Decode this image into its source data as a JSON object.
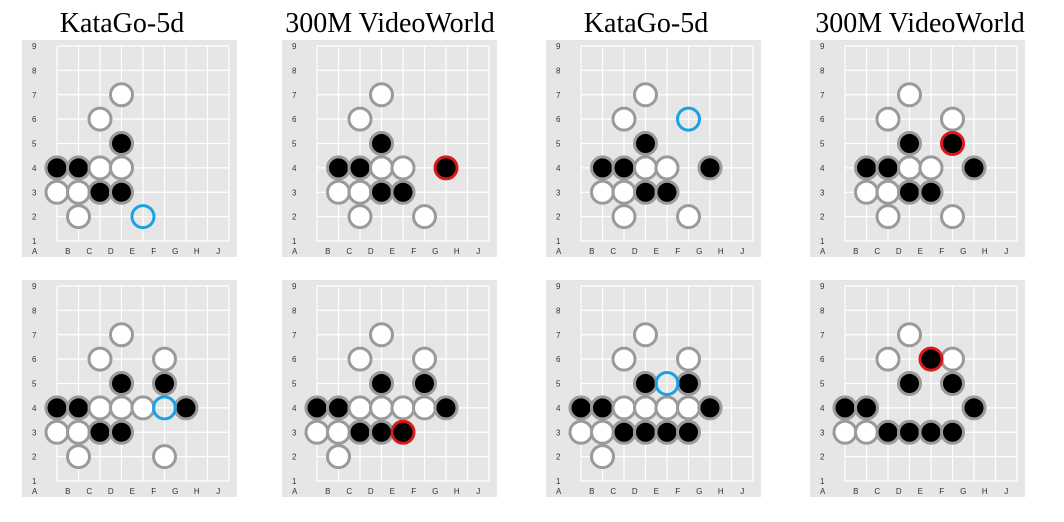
{
  "columns": [
    {
      "title": "KataGo-5d"
    },
    {
      "title": "300M VideoWorld"
    },
    {
      "title": "KataGo-5d"
    },
    {
      "title": "300M VideoWorld"
    }
  ],
  "axis": {
    "cols": [
      "A",
      "B",
      "C",
      "D",
      "E",
      "F",
      "G",
      "H",
      "J"
    ],
    "rows": [
      "1",
      "2",
      "3",
      "4",
      "5",
      "6",
      "7",
      "8",
      "9"
    ]
  },
  "colors": {
    "board": "#e6e6e6",
    "grid": "#ffffff",
    "black_stone": "#000000",
    "white_stone": "#ffffff",
    "stone_ring": "#9a9a9a",
    "katago_move": "#1ba1e2",
    "videoworld_move": "#d81a1a"
  },
  "boards": [
    {
      "name": "katago-board-1",
      "stones": [
        {
          "c": "D",
          "r": 7,
          "s": "w"
        },
        {
          "c": "C",
          "r": 6,
          "s": "w"
        },
        {
          "c": "D",
          "r": 5,
          "s": "b"
        },
        {
          "c": "A",
          "r": 4,
          "s": "b"
        },
        {
          "c": "B",
          "r": 4,
          "s": "b"
        },
        {
          "c": "C",
          "r": 4,
          "s": "w"
        },
        {
          "c": "D",
          "r": 4,
          "s": "w"
        },
        {
          "c": "A",
          "r": 3,
          "s": "w"
        },
        {
          "c": "B",
          "r": 3,
          "s": "w"
        },
        {
          "c": "C",
          "r": 3,
          "s": "b"
        },
        {
          "c": "D",
          "r": 3,
          "s": "b"
        },
        {
          "c": "B",
          "r": 2,
          "s": "w"
        }
      ],
      "move": {
        "c": "E",
        "r": 2,
        "s": "empty",
        "kind": "katago"
      }
    },
    {
      "name": "videoworld-board-1",
      "stones": [
        {
          "c": "D",
          "r": 7,
          "s": "w"
        },
        {
          "c": "C",
          "r": 6,
          "s": "w"
        },
        {
          "c": "D",
          "r": 5,
          "s": "b"
        },
        {
          "c": "B",
          "r": 4,
          "s": "b"
        },
        {
          "c": "C",
          "r": 4,
          "s": "b"
        },
        {
          "c": "D",
          "r": 4,
          "s": "w"
        },
        {
          "c": "E",
          "r": 4,
          "s": "w"
        },
        {
          "c": "B",
          "r": 3,
          "s": "w"
        },
        {
          "c": "C",
          "r": 3,
          "s": "w"
        },
        {
          "c": "D",
          "r": 3,
          "s": "b"
        },
        {
          "c": "E",
          "r": 3,
          "s": "b"
        },
        {
          "c": "C",
          "r": 2,
          "s": "w"
        },
        {
          "c": "F",
          "r": 2,
          "s": "w"
        }
      ],
      "move": {
        "c": "G",
        "r": 4,
        "s": "b",
        "kind": "videoworld"
      }
    },
    {
      "name": "katago-board-2",
      "stones": [
        {
          "c": "D",
          "r": 7,
          "s": "w"
        },
        {
          "c": "C",
          "r": 6,
          "s": "w"
        },
        {
          "c": "D",
          "r": 5,
          "s": "b"
        },
        {
          "c": "B",
          "r": 4,
          "s": "b"
        },
        {
          "c": "C",
          "r": 4,
          "s": "b"
        },
        {
          "c": "D",
          "r": 4,
          "s": "w"
        },
        {
          "c": "E",
          "r": 4,
          "s": "w"
        },
        {
          "c": "G",
          "r": 4,
          "s": "b"
        },
        {
          "c": "B",
          "r": 3,
          "s": "w"
        },
        {
          "c": "C",
          "r": 3,
          "s": "w"
        },
        {
          "c": "D",
          "r": 3,
          "s": "b"
        },
        {
          "c": "E",
          "r": 3,
          "s": "b"
        },
        {
          "c": "C",
          "r": 2,
          "s": "w"
        },
        {
          "c": "F",
          "r": 2,
          "s": "w"
        }
      ],
      "move": {
        "c": "F",
        "r": 6,
        "s": "empty",
        "kind": "katago"
      }
    },
    {
      "name": "videoworld-board-2",
      "stones": [
        {
          "c": "D",
          "r": 7,
          "s": "w"
        },
        {
          "c": "C",
          "r": 6,
          "s": "w"
        },
        {
          "c": "F",
          "r": 6,
          "s": "w"
        },
        {
          "c": "D",
          "r": 5,
          "s": "b"
        },
        {
          "c": "B",
          "r": 4,
          "s": "b"
        },
        {
          "c": "C",
          "r": 4,
          "s": "b"
        },
        {
          "c": "D",
          "r": 4,
          "s": "w"
        },
        {
          "c": "E",
          "r": 4,
          "s": "w"
        },
        {
          "c": "G",
          "r": 4,
          "s": "b"
        },
        {
          "c": "B",
          "r": 3,
          "s": "w"
        },
        {
          "c": "C",
          "r": 3,
          "s": "w"
        },
        {
          "c": "D",
          "r": 3,
          "s": "b"
        },
        {
          "c": "E",
          "r": 3,
          "s": "b"
        },
        {
          "c": "C",
          "r": 2,
          "s": "w"
        },
        {
          "c": "F",
          "r": 2,
          "s": "w"
        }
      ],
      "move": {
        "c": "F",
        "r": 5,
        "s": "b",
        "kind": "videoworld"
      }
    },
    {
      "name": "katago-board-3",
      "stones": [
        {
          "c": "D",
          "r": 7,
          "s": "w"
        },
        {
          "c": "C",
          "r": 6,
          "s": "w"
        },
        {
          "c": "F",
          "r": 6,
          "s": "w"
        },
        {
          "c": "D",
          "r": 5,
          "s": "b"
        },
        {
          "c": "F",
          "r": 5,
          "s": "b"
        },
        {
          "c": "A",
          "r": 4,
          "s": "b"
        },
        {
          "c": "B",
          "r": 4,
          "s": "b"
        },
        {
          "c": "C",
          "r": 4,
          "s": "w"
        },
        {
          "c": "D",
          "r": 4,
          "s": "w"
        },
        {
          "c": "E",
          "r": 4,
          "s": "w"
        },
        {
          "c": "G",
          "r": 4,
          "s": "b"
        },
        {
          "c": "A",
          "r": 3,
          "s": "w"
        },
        {
          "c": "B",
          "r": 3,
          "s": "w"
        },
        {
          "c": "C",
          "r": 3,
          "s": "b"
        },
        {
          "c": "D",
          "r": 3,
          "s": "b"
        },
        {
          "c": "B",
          "r": 2,
          "s": "w"
        },
        {
          "c": "F",
          "r": 2,
          "s": "w"
        }
      ],
      "move": {
        "c": "F",
        "r": 4,
        "s": "empty",
        "kind": "katago"
      }
    },
    {
      "name": "videoworld-board-3",
      "stones": [
        {
          "c": "D",
          "r": 7,
          "s": "w"
        },
        {
          "c": "C",
          "r": 6,
          "s": "w"
        },
        {
          "c": "F",
          "r": 6,
          "s": "w"
        },
        {
          "c": "D",
          "r": 5,
          "s": "b"
        },
        {
          "c": "F",
          "r": 5,
          "s": "b"
        },
        {
          "c": "A",
          "r": 4,
          "s": "b"
        },
        {
          "c": "B",
          "r": 4,
          "s": "b"
        },
        {
          "c": "C",
          "r": 4,
          "s": "w"
        },
        {
          "c": "D",
          "r": 4,
          "s": "w"
        },
        {
          "c": "E",
          "r": 4,
          "s": "w"
        },
        {
          "c": "F",
          "r": 4,
          "s": "w"
        },
        {
          "c": "G",
          "r": 4,
          "s": "b"
        },
        {
          "c": "A",
          "r": 3,
          "s": "w"
        },
        {
          "c": "B",
          "r": 3,
          "s": "w"
        },
        {
          "c": "C",
          "r": 3,
          "s": "b"
        },
        {
          "c": "D",
          "r": 3,
          "s": "b"
        },
        {
          "c": "B",
          "r": 2,
          "s": "w"
        }
      ],
      "move": {
        "c": "E",
        "r": 3,
        "s": "b",
        "kind": "videoworld"
      }
    },
    {
      "name": "katago-board-4",
      "stones": [
        {
          "c": "D",
          "r": 7,
          "s": "w"
        },
        {
          "c": "C",
          "r": 6,
          "s": "w"
        },
        {
          "c": "F",
          "r": 6,
          "s": "w"
        },
        {
          "c": "D",
          "r": 5,
          "s": "b"
        },
        {
          "c": "F",
          "r": 5,
          "s": "b"
        },
        {
          "c": "A",
          "r": 4,
          "s": "b"
        },
        {
          "c": "B",
          "r": 4,
          "s": "b"
        },
        {
          "c": "C",
          "r": 4,
          "s": "w"
        },
        {
          "c": "D",
          "r": 4,
          "s": "w"
        },
        {
          "c": "E",
          "r": 4,
          "s": "w"
        },
        {
          "c": "F",
          "r": 4,
          "s": "w"
        },
        {
          "c": "G",
          "r": 4,
          "s": "b"
        },
        {
          "c": "A",
          "r": 3,
          "s": "w"
        },
        {
          "c": "B",
          "r": 3,
          "s": "w"
        },
        {
          "c": "C",
          "r": 3,
          "s": "b"
        },
        {
          "c": "D",
          "r": 3,
          "s": "b"
        },
        {
          "c": "E",
          "r": 3,
          "s": "b"
        },
        {
          "c": "F",
          "r": 3,
          "s": "b"
        },
        {
          "c": "B",
          "r": 2,
          "s": "w"
        }
      ],
      "move": {
        "c": "E",
        "r": 5,
        "s": "empty",
        "kind": "katago"
      }
    },
    {
      "name": "videoworld-board-4",
      "stones": [
        {
          "c": "D",
          "r": 7,
          "s": "w"
        },
        {
          "c": "C",
          "r": 6,
          "s": "w"
        },
        {
          "c": "F",
          "r": 6,
          "s": "w"
        },
        {
          "c": "D",
          "r": 5,
          "s": "b"
        },
        {
          "c": "F",
          "r": 5,
          "s": "b"
        },
        {
          "c": "A",
          "r": 4,
          "s": "b"
        },
        {
          "c": "B",
          "r": 4,
          "s": "b"
        },
        {
          "c": "G",
          "r": 4,
          "s": "b"
        },
        {
          "c": "A",
          "r": 3,
          "s": "w"
        },
        {
          "c": "B",
          "r": 3,
          "s": "w"
        },
        {
          "c": "C",
          "r": 3,
          "s": "b"
        },
        {
          "c": "D",
          "r": 3,
          "s": "b"
        },
        {
          "c": "E",
          "r": 3,
          "s": "b"
        },
        {
          "c": "F",
          "r": 3,
          "s": "b"
        }
      ],
      "move": {
        "c": "E",
        "r": 6,
        "s": "b",
        "kind": "videoworld"
      }
    }
  ]
}
